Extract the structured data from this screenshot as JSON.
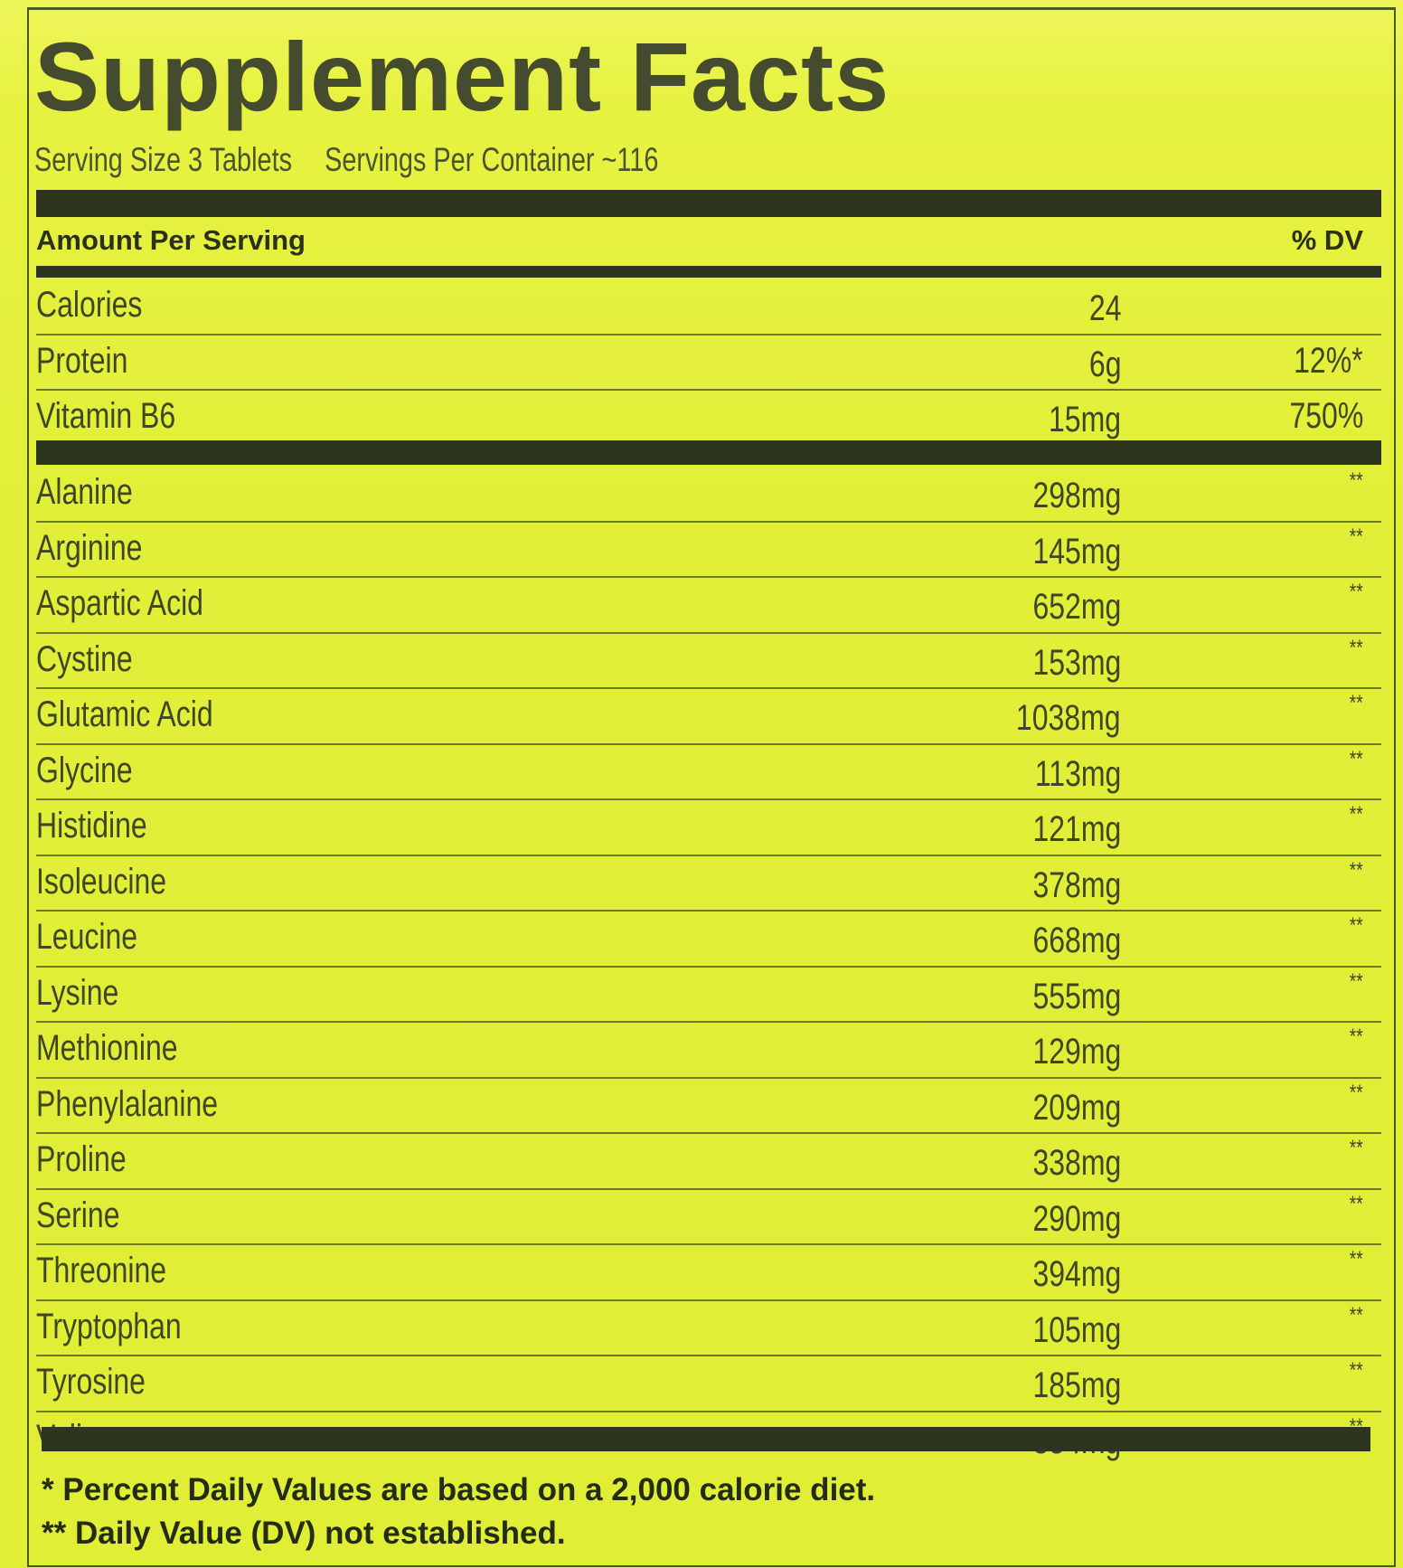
{
  "title": "Supplement Facts",
  "serving_size": "Serving Size 3 Tablets",
  "servings_per_container": "Servings Per Container ~116",
  "header": {
    "amount_label": "Amount Per Serving",
    "dv_label": "% DV"
  },
  "main_rows": [
    {
      "name": "Calories",
      "amount": "24",
      "dv": ""
    },
    {
      "name": "Protein",
      "amount": "6g",
      "dv": "12%*"
    },
    {
      "name": "Vitamin B6",
      "amount": "15mg",
      "dv": "750%"
    }
  ],
  "amino_rows": [
    {
      "name": "Alanine",
      "amount": "298mg",
      "dv": "**"
    },
    {
      "name": "Arginine",
      "amount": "145mg",
      "dv": "**"
    },
    {
      "name": "Aspartic Acid",
      "amount": "652mg",
      "dv": "**"
    },
    {
      "name": "Cystine",
      "amount": "153mg",
      "dv": "**"
    },
    {
      "name": "Glutamic Acid",
      "amount": "1038mg",
      "dv": "**"
    },
    {
      "name": "Glycine",
      "amount": "113mg",
      "dv": "**"
    },
    {
      "name": "Histidine",
      "amount": "121mg",
      "dv": "**"
    },
    {
      "name": "Isoleucine",
      "amount": "378mg",
      "dv": "**"
    },
    {
      "name": "Leucine",
      "amount": "668mg",
      "dv": "**"
    },
    {
      "name": "Lysine",
      "amount": "555mg",
      "dv": "**"
    },
    {
      "name": "Methionine",
      "amount": "129mg",
      "dv": "**"
    },
    {
      "name": "Phenylalanine",
      "amount": "209mg",
      "dv": "**"
    },
    {
      "name": "Proline",
      "amount": "338mg",
      "dv": "**"
    },
    {
      "name": "Serine",
      "amount": "290mg",
      "dv": "**"
    },
    {
      "name": "Threonine",
      "amount": "394mg",
      "dv": "**"
    },
    {
      "name": "Tryptophan",
      "amount": "105mg",
      "dv": "**"
    },
    {
      "name": "Tyrosine",
      "amount": "185mg",
      "dv": "**"
    },
    {
      "name": "Valine",
      "amount": "354mg",
      "dv": "**"
    }
  ],
  "footnotes": [
    "* Percent Daily Values are based on a 2,000 calorie diet.",
    "** Daily Value (DV) not established."
  ],
  "colors": {
    "background": "#e3f03a",
    "ink": "#2d3420"
  }
}
